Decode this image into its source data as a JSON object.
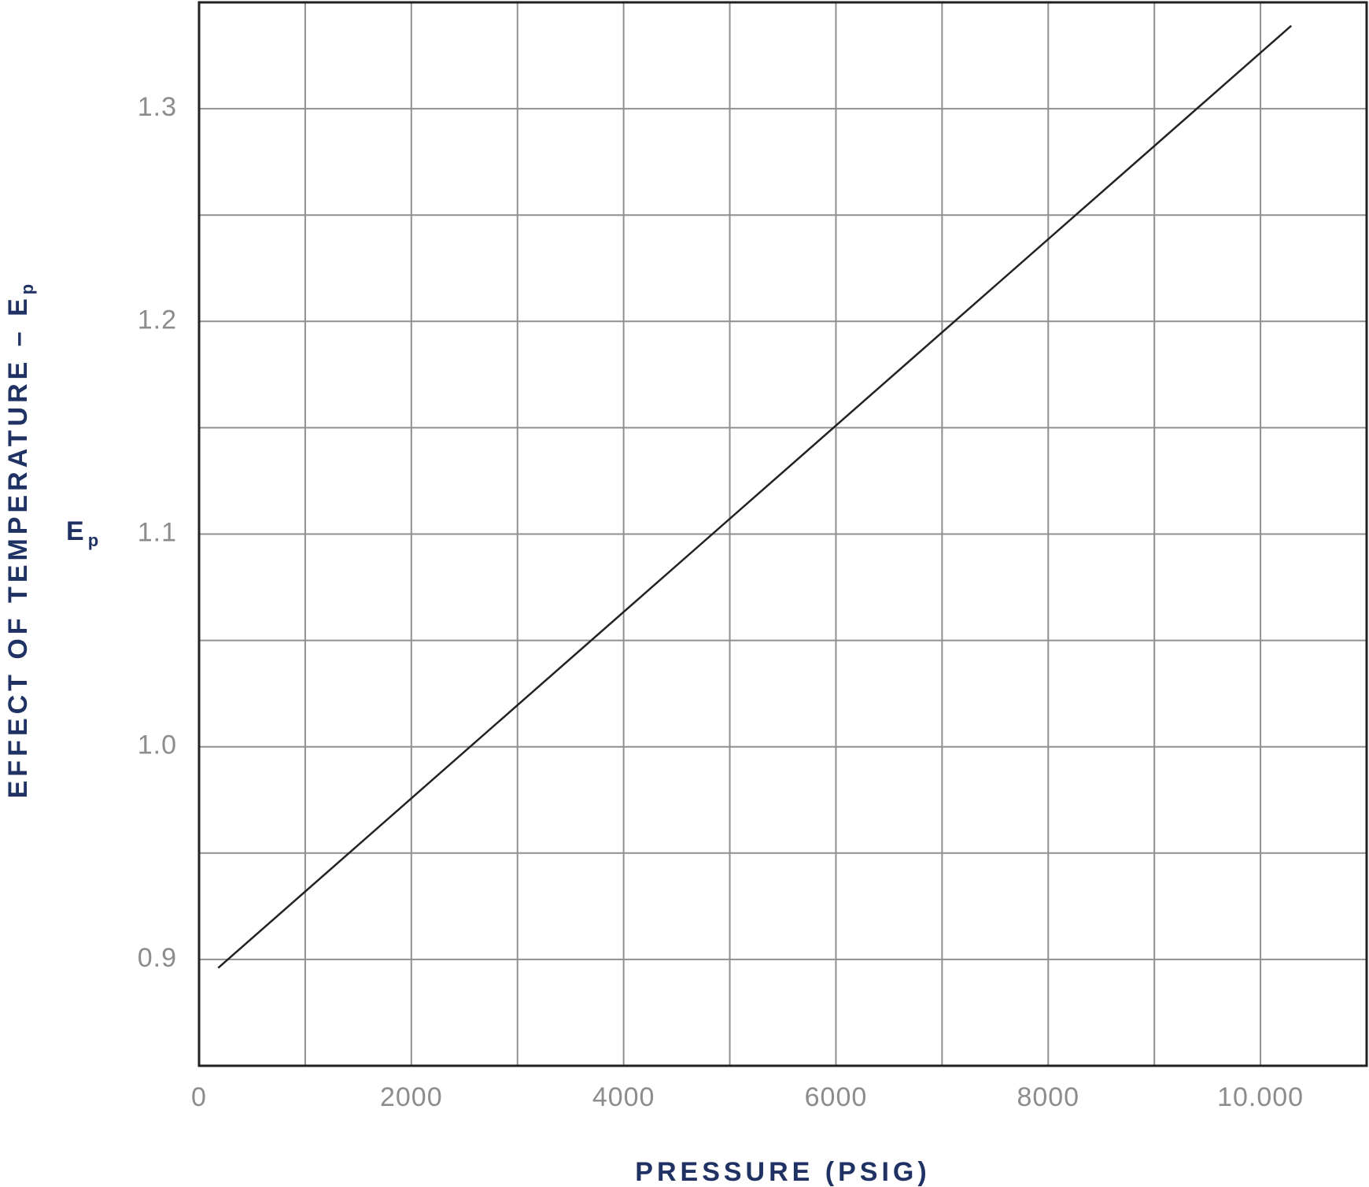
{
  "chart_data": {
    "type": "line",
    "xlabel": "PRESSURE (PSIG)",
    "ylabel": "EFFECT OF TEMPERATURE – E",
    "ylabel_sub": "p",
    "y_symbol": "E",
    "y_symbol_sub": "p",
    "x": [
      180,
      10290
    ],
    "series": [
      {
        "color": "#222222",
        "values": [
          0.896,
          1.339
        ]
      }
    ],
    "xlim": [
      0,
      11000
    ],
    "xticks": [
      0,
      2000,
      4000,
      6000,
      8000,
      {
        "value": 10000,
        "label": "10.000"
      }
    ],
    "xminorticks": [
      1000,
      3000,
      5000,
      7000,
      9000
    ],
    "ylim": [
      0.85,
      1.35
    ],
    "yticks": [
      0.9,
      {
        "value": 1,
        "label": "1.0"
      },
      1.1,
      1.2,
      1.3
    ],
    "yminorticks": [
      0.95,
      1.05,
      1.15,
      1.25
    ],
    "grid": true
  }
}
